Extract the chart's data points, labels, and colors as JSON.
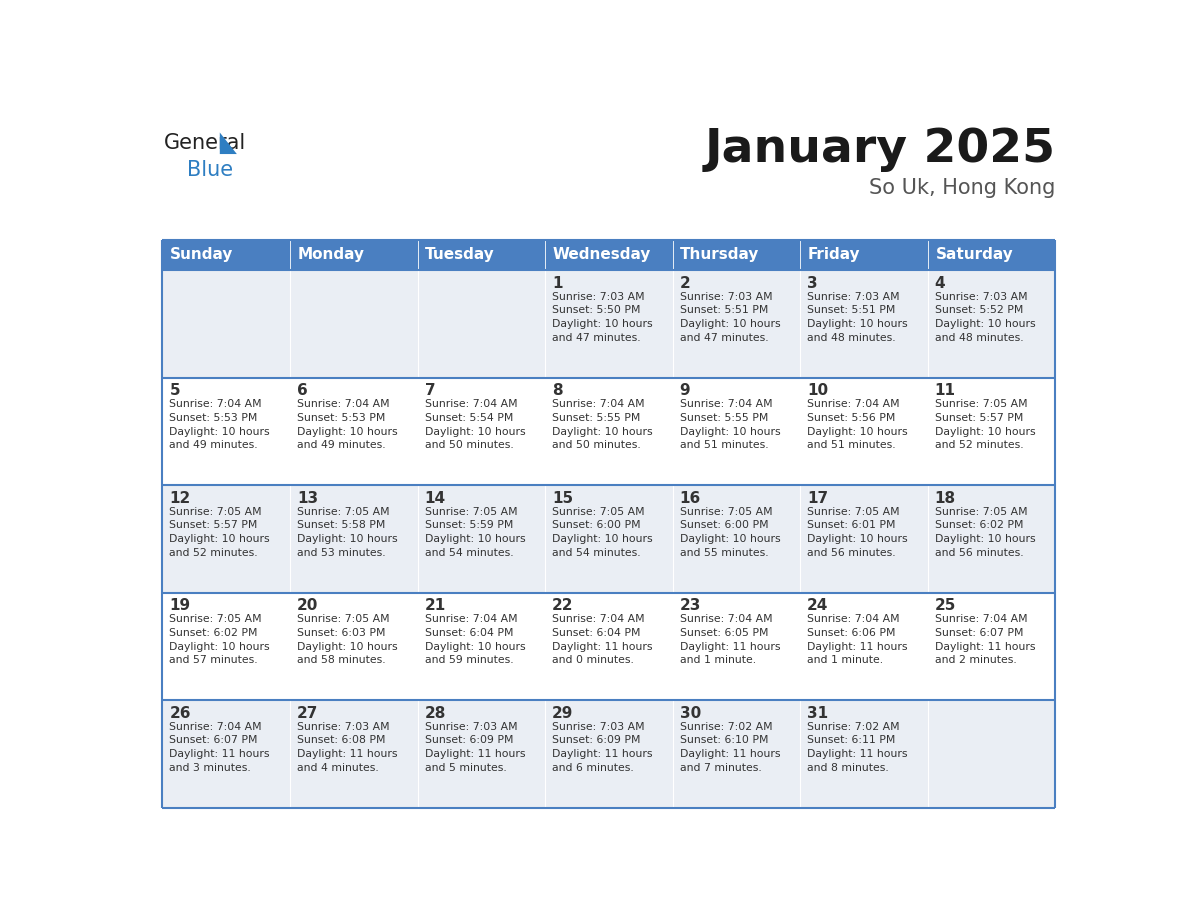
{
  "title": "January 2025",
  "subtitle": "So Uk, Hong Kong",
  "header_color": "#4a7fc1",
  "header_text_color": "#FFFFFF",
  "cell_bg_even": "#EAEEF4",
  "cell_bg_odd": "#FFFFFF",
  "border_color": "#4a7fc1",
  "day_text_color": "#333333",
  "day_headers": [
    "Sunday",
    "Monday",
    "Tuesday",
    "Wednesday",
    "Thursday",
    "Friday",
    "Saturday"
  ],
  "title_color": "#1a1a1a",
  "subtitle_color": "#555555",
  "logo_general_color": "#222222",
  "logo_blue_color": "#2E7EC2",
  "weeks": [
    [
      {
        "day": "",
        "text": ""
      },
      {
        "day": "",
        "text": ""
      },
      {
        "day": "",
        "text": ""
      },
      {
        "day": "1",
        "text": "Sunrise: 7:03 AM\nSunset: 5:50 PM\nDaylight: 10 hours\nand 47 minutes."
      },
      {
        "day": "2",
        "text": "Sunrise: 7:03 AM\nSunset: 5:51 PM\nDaylight: 10 hours\nand 47 minutes."
      },
      {
        "day": "3",
        "text": "Sunrise: 7:03 AM\nSunset: 5:51 PM\nDaylight: 10 hours\nand 48 minutes."
      },
      {
        "day": "4",
        "text": "Sunrise: 7:03 AM\nSunset: 5:52 PM\nDaylight: 10 hours\nand 48 minutes."
      }
    ],
    [
      {
        "day": "5",
        "text": "Sunrise: 7:04 AM\nSunset: 5:53 PM\nDaylight: 10 hours\nand 49 minutes."
      },
      {
        "day": "6",
        "text": "Sunrise: 7:04 AM\nSunset: 5:53 PM\nDaylight: 10 hours\nand 49 minutes."
      },
      {
        "day": "7",
        "text": "Sunrise: 7:04 AM\nSunset: 5:54 PM\nDaylight: 10 hours\nand 50 minutes."
      },
      {
        "day": "8",
        "text": "Sunrise: 7:04 AM\nSunset: 5:55 PM\nDaylight: 10 hours\nand 50 minutes."
      },
      {
        "day": "9",
        "text": "Sunrise: 7:04 AM\nSunset: 5:55 PM\nDaylight: 10 hours\nand 51 minutes."
      },
      {
        "day": "10",
        "text": "Sunrise: 7:04 AM\nSunset: 5:56 PM\nDaylight: 10 hours\nand 51 minutes."
      },
      {
        "day": "11",
        "text": "Sunrise: 7:05 AM\nSunset: 5:57 PM\nDaylight: 10 hours\nand 52 minutes."
      }
    ],
    [
      {
        "day": "12",
        "text": "Sunrise: 7:05 AM\nSunset: 5:57 PM\nDaylight: 10 hours\nand 52 minutes."
      },
      {
        "day": "13",
        "text": "Sunrise: 7:05 AM\nSunset: 5:58 PM\nDaylight: 10 hours\nand 53 minutes."
      },
      {
        "day": "14",
        "text": "Sunrise: 7:05 AM\nSunset: 5:59 PM\nDaylight: 10 hours\nand 54 minutes."
      },
      {
        "day": "15",
        "text": "Sunrise: 7:05 AM\nSunset: 6:00 PM\nDaylight: 10 hours\nand 54 minutes."
      },
      {
        "day": "16",
        "text": "Sunrise: 7:05 AM\nSunset: 6:00 PM\nDaylight: 10 hours\nand 55 minutes."
      },
      {
        "day": "17",
        "text": "Sunrise: 7:05 AM\nSunset: 6:01 PM\nDaylight: 10 hours\nand 56 minutes."
      },
      {
        "day": "18",
        "text": "Sunrise: 7:05 AM\nSunset: 6:02 PM\nDaylight: 10 hours\nand 56 minutes."
      }
    ],
    [
      {
        "day": "19",
        "text": "Sunrise: 7:05 AM\nSunset: 6:02 PM\nDaylight: 10 hours\nand 57 minutes."
      },
      {
        "day": "20",
        "text": "Sunrise: 7:05 AM\nSunset: 6:03 PM\nDaylight: 10 hours\nand 58 minutes."
      },
      {
        "day": "21",
        "text": "Sunrise: 7:04 AM\nSunset: 6:04 PM\nDaylight: 10 hours\nand 59 minutes."
      },
      {
        "day": "22",
        "text": "Sunrise: 7:04 AM\nSunset: 6:04 PM\nDaylight: 11 hours\nand 0 minutes."
      },
      {
        "day": "23",
        "text": "Sunrise: 7:04 AM\nSunset: 6:05 PM\nDaylight: 11 hours\nand 1 minute."
      },
      {
        "day": "24",
        "text": "Sunrise: 7:04 AM\nSunset: 6:06 PM\nDaylight: 11 hours\nand 1 minute."
      },
      {
        "day": "25",
        "text": "Sunrise: 7:04 AM\nSunset: 6:07 PM\nDaylight: 11 hours\nand 2 minutes."
      }
    ],
    [
      {
        "day": "26",
        "text": "Sunrise: 7:04 AM\nSunset: 6:07 PM\nDaylight: 11 hours\nand 3 minutes."
      },
      {
        "day": "27",
        "text": "Sunrise: 7:03 AM\nSunset: 6:08 PM\nDaylight: 11 hours\nand 4 minutes."
      },
      {
        "day": "28",
        "text": "Sunrise: 7:03 AM\nSunset: 6:09 PM\nDaylight: 11 hours\nand 5 minutes."
      },
      {
        "day": "29",
        "text": "Sunrise: 7:03 AM\nSunset: 6:09 PM\nDaylight: 11 hours\nand 6 minutes."
      },
      {
        "day": "30",
        "text": "Sunrise: 7:02 AM\nSunset: 6:10 PM\nDaylight: 11 hours\nand 7 minutes."
      },
      {
        "day": "31",
        "text": "Sunrise: 7:02 AM\nSunset: 6:11 PM\nDaylight: 11 hours\nand 8 minutes."
      },
      {
        "day": "",
        "text": ""
      }
    ]
  ],
  "fig_width": 11.88,
  "fig_height": 9.18,
  "dpi": 100
}
